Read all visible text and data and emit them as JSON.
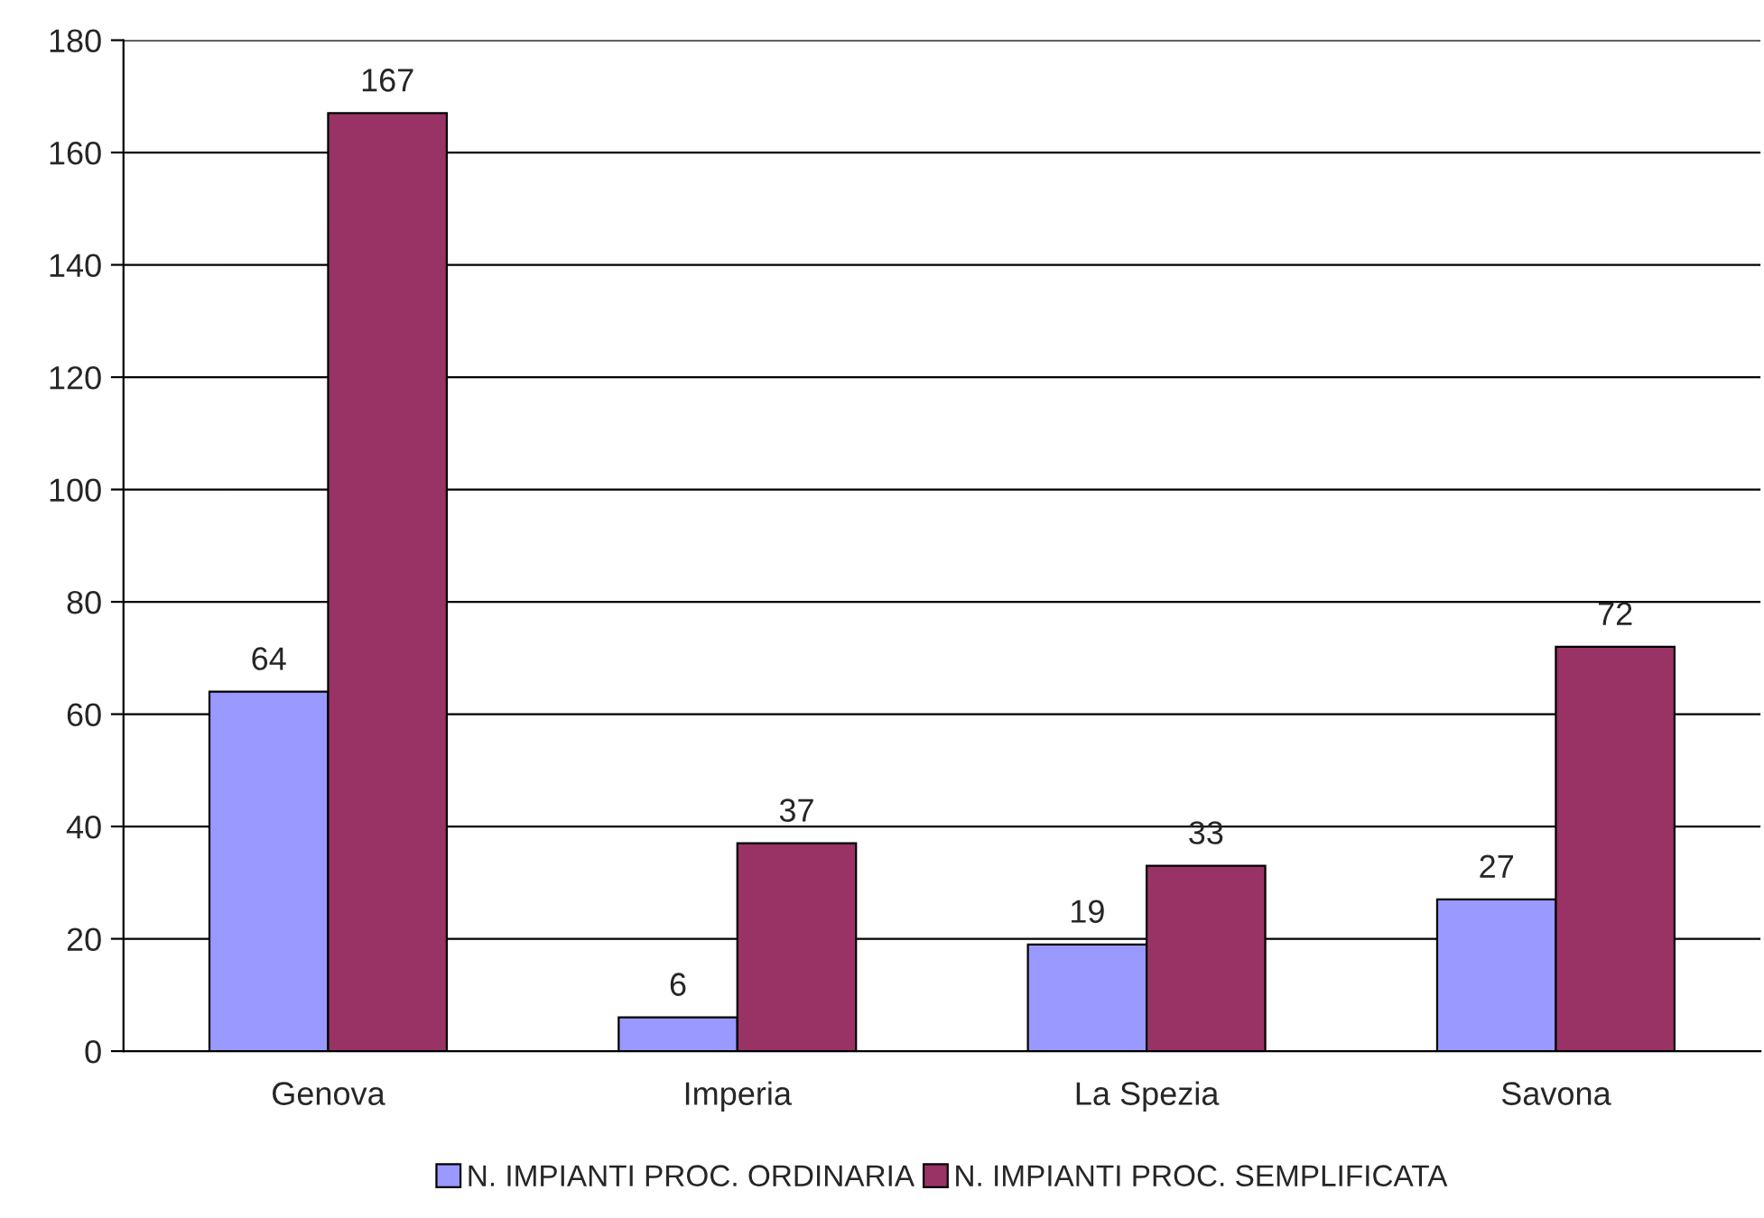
{
  "chart_data": {
    "type": "bar",
    "categories": [
      "Genova",
      "Imperia",
      "La Spezia",
      "Savona"
    ],
    "series": [
      {
        "name": "N. IMPIANTI PROC. ORDINARIA",
        "color": "#9999ff",
        "values": [
          64,
          6,
          19,
          27
        ]
      },
      {
        "name": "N. IMPIANTI PROC. SEMPLIFICATA",
        "color": "#993366",
        "values": [
          167,
          37,
          33,
          72
        ]
      }
    ],
    "ylim": [
      0,
      180
    ],
    "yticks": [
      0,
      20,
      40,
      60,
      80,
      100,
      120,
      140,
      160,
      180
    ],
    "grid": "y",
    "legend": "bottom",
    "data_labels": true
  }
}
